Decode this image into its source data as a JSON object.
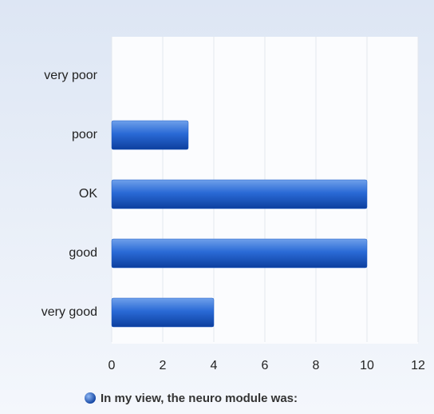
{
  "chart_data": {
    "type": "bar",
    "orientation": "horizontal",
    "categories": [
      "very poor",
      "poor",
      "OK",
      "good",
      "very good"
    ],
    "series": [
      {
        "name": "In my view, the neuro module was:",
        "color": "#1e5fc8",
        "values": [
          0,
          3,
          10,
          10,
          4
        ]
      }
    ],
    "xlim": [
      0,
      12
    ],
    "xticks": [
      0,
      2,
      4,
      6,
      8,
      10,
      12
    ],
    "grid": true,
    "legend": "bottom"
  }
}
